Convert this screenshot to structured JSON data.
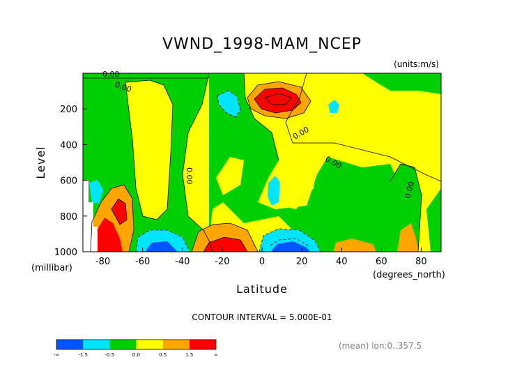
{
  "chart_data": {
    "type": "heatmap",
    "title": "VWND_1998-MAM_NCEP",
    "units_label": "(units:m/s)",
    "xlabel": "Latitude",
    "x_units_label": "(degrees_north)",
    "ylabel": "Level",
    "y_units_label": "(millibar)",
    "xlim": [
      -90,
      90
    ],
    "ylim": [
      1000,
      0
    ],
    "x_ticks": [
      -80,
      -60,
      -40,
      -20,
      0,
      20,
      40,
      60,
      80
    ],
    "x_tick_labels": [
      "-80",
      "-60",
      "-40",
      "-20",
      "0",
      "20",
      "40",
      "60",
      "80"
    ],
    "y_ticks": [
      200,
      400,
      600,
      800,
      1000
    ],
    "y_tick_labels": [
      "200",
      "400",
      "600",
      "800",
      "1000"
    ],
    "contour_interval_text": "CONTOUR INTERVAL = 5.000E-01",
    "mean_text": "(mean) lon:0..357.5",
    "contour_labels": [
      "0.00",
      "0.00",
      "0.00",
      "0.00",
      "0.00",
      "0.00"
    ],
    "colorbar": {
      "colors": [
        "#0055ff",
        "#00e5ff",
        "#00d000",
        "#ffff00",
        "#ffa500",
        "#ff0000"
      ],
      "tick_labels": [
        "-∞",
        "-1.5",
        "-0.5",
        "0.0",
        "0.5",
        "1.5",
        "∞"
      ],
      "bins": [
        {
          "min": "-inf",
          "max": -1.5
        },
        {
          "min": -1.5,
          "max": -0.5
        },
        {
          "min": -0.5,
          "max": 0.0
        },
        {
          "min": 0.0,
          "max": 0.5
        },
        {
          "min": 0.5,
          "max": 1.5
        },
        {
          "min": 1.5,
          "max": "inf"
        }
      ]
    },
    "features": [
      {
        "lat": 8,
        "level": 140,
        "value": 2.0
      },
      {
        "lat": -25,
        "level": 150,
        "value": -0.8
      },
      {
        "lat": 40,
        "level": 180,
        "value": -0.6
      },
      {
        "lat": -18,
        "level": 990,
        "value": 2.0
      },
      {
        "lat": -55,
        "level": 990,
        "value": -2.0
      },
      {
        "lat": 12,
        "level": 990,
        "value": -1.8
      },
      {
        "lat": -82,
        "level": 950,
        "value": 2.0
      },
      {
        "lat": -75,
        "level": 820,
        "value": 1.0
      },
      {
        "lat": 5,
        "level": 630,
        "value": -0.7
      },
      {
        "lat": -85,
        "level": 680,
        "value": -0.6
      },
      {
        "lat": -60,
        "level": 200,
        "value": 0.2
      },
      {
        "lat": 55,
        "level": 200,
        "value": 0.2
      },
      {
        "lat": 75,
        "level": 990,
        "value": 0.8
      },
      {
        "lat": 48,
        "level": 990,
        "value": 0.7
      }
    ]
  }
}
